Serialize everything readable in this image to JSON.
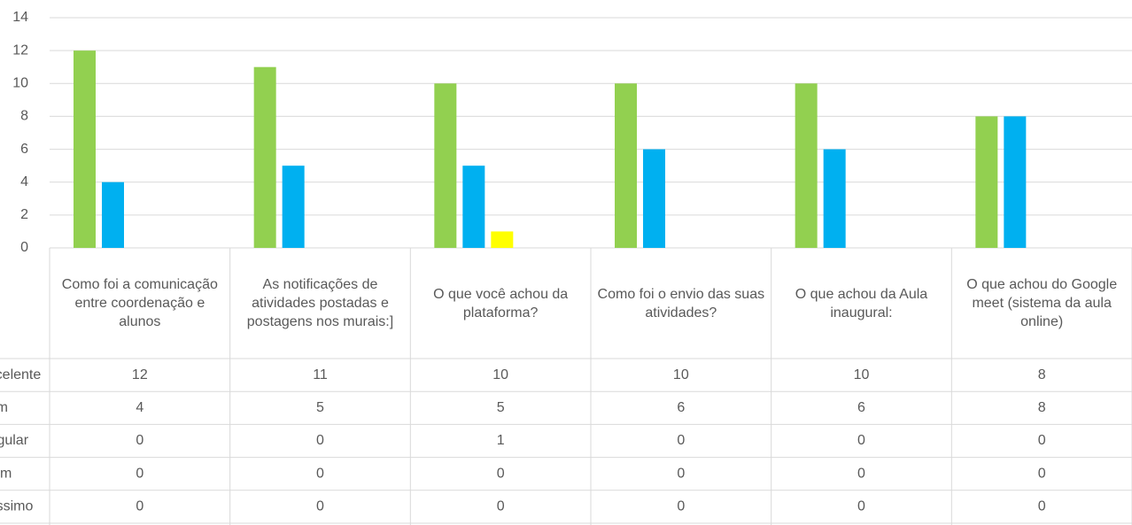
{
  "chart_data": {
    "type": "bar",
    "categories": [
      "Como foi a comunicação entre coordenação e alunos",
      "As notificações de atividades postadas e postagens nos murais:]",
      "O que você achou da plataforma?",
      "Como foi o envio das suas atividades?",
      "O que achou da Aula inaugural:",
      "O que achou do Google meet (sistema da aula online)"
    ],
    "series": [
      {
        "name": "Excelente",
        "color": "#92d050",
        "values": [
          12,
          11,
          10,
          10,
          10,
          8
        ]
      },
      {
        "name": "Bom",
        "color": "#00b0f0",
        "values": [
          4,
          5,
          5,
          6,
          6,
          8
        ]
      },
      {
        "name": "Regular",
        "color": "#ffff00",
        "values": [
          0,
          0,
          1,
          0,
          0,
          0
        ]
      },
      {
        "name": "Ruim",
        "color": "#ffc000",
        "values": [
          0,
          0,
          0,
          0,
          0,
          0
        ]
      },
      {
        "name": "Péssimo",
        "color": "#ff0000",
        "values": [
          0,
          0,
          0,
          0,
          0,
          0
        ]
      }
    ],
    "ylim": [
      0,
      14
    ],
    "yticks": [
      0,
      2,
      4,
      6,
      8,
      10,
      12,
      14
    ],
    "grid": true,
    "data_table": true
  }
}
